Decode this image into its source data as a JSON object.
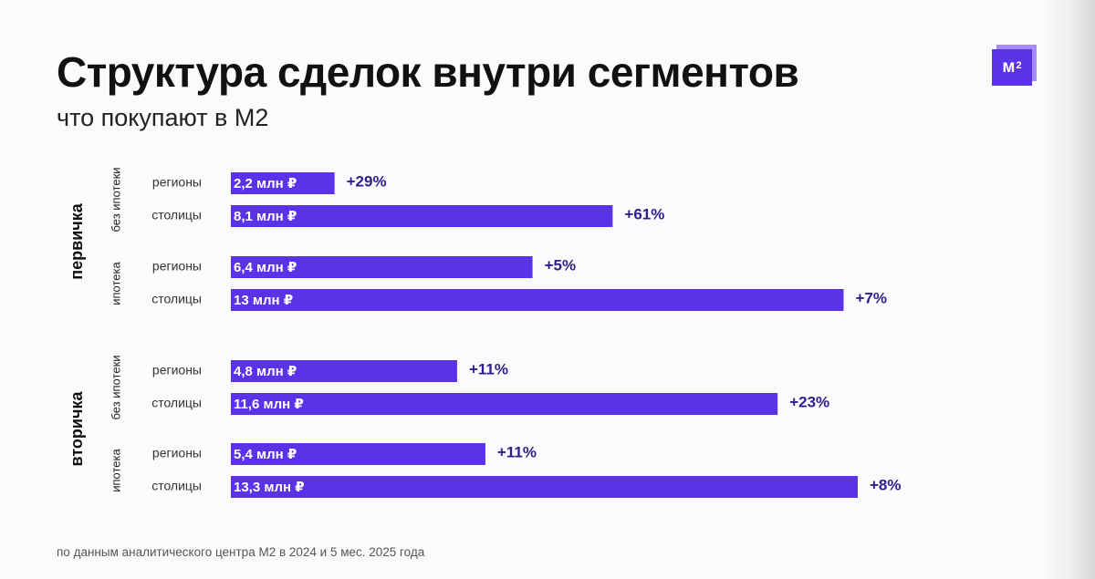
{
  "brand": {
    "logo_text": "м",
    "logo_sup": "2",
    "accent": "#5b33e6"
  },
  "footer": "по данным аналитического центра М2 в 2024 и 5 мес. 2025 года",
  "chart_data": {
    "type": "bar",
    "orientation": "horizontal",
    "title": "Структура сделок внутри сегментов",
    "subtitle": "что покупают в М2",
    "unit": "млн ₽",
    "xlim": [
      0,
      13.3
    ],
    "groups": [
      {
        "name": "первичка",
        "subgroups": [
          {
            "name": "без ипотеки",
            "bars": [
              {
                "category": "регионы",
                "value": 2.2,
                "label": "2,2 млн ₽",
                "change": "+29%"
              },
              {
                "category": "столицы",
                "value": 8.1,
                "label": "8,1 млн ₽",
                "change": "+61%"
              }
            ]
          },
          {
            "name": "ипотека",
            "bars": [
              {
                "category": "регионы",
                "value": 6.4,
                "label": "6,4 млн ₽",
                "change": "+5%"
              },
              {
                "category": "столицы",
                "value": 13.0,
                "label": "13 млн ₽",
                "change": "+7%"
              }
            ]
          }
        ]
      },
      {
        "name": "вторичка",
        "subgroups": [
          {
            "name": "без ипотеки",
            "bars": [
              {
                "category": "регионы",
                "value": 4.8,
                "label": "4,8 млн ₽",
                "change": "+11%"
              },
              {
                "category": "столицы",
                "value": 11.6,
                "label": "11,6 млн ₽",
                "change": "+23%"
              }
            ]
          },
          {
            "name": "ипотека",
            "bars": [
              {
                "category": "регионы",
                "value": 5.4,
                "label": "5,4 млн ₽",
                "change": "+11%"
              },
              {
                "category": "столицы",
                "value": 13.3,
                "label": "13,3 млн ₽",
                "change": "+8%"
              }
            ]
          }
        ]
      }
    ],
    "colors": {
      "bar": "#5b33e6",
      "change_text": "#2e1e8c"
    }
  }
}
